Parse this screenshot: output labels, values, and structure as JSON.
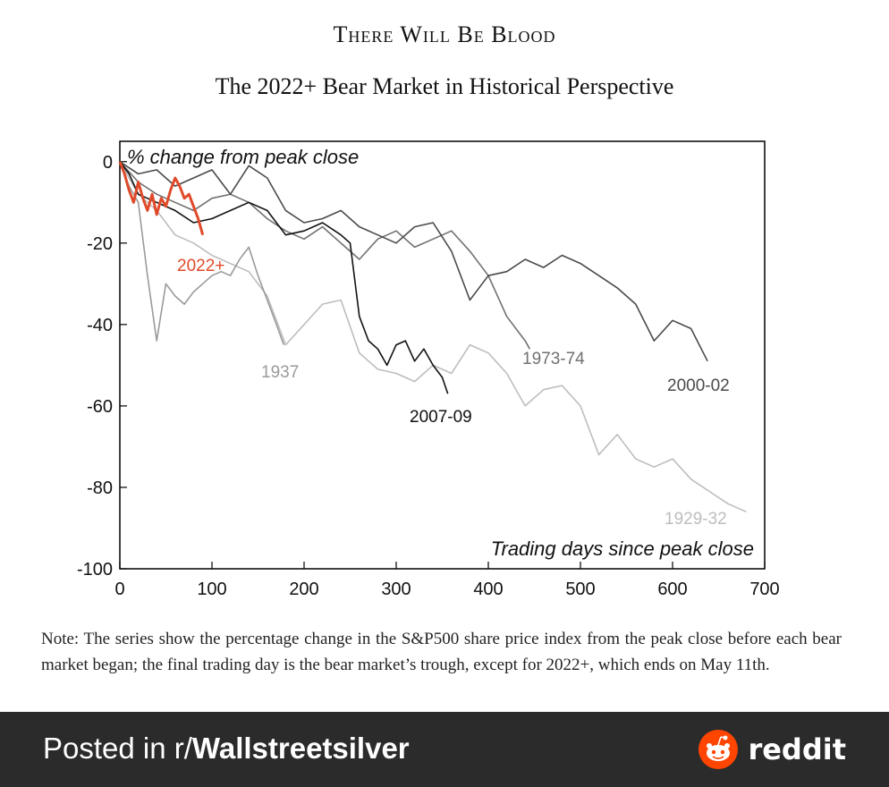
{
  "header": {
    "title": "There Will Be Blood",
    "subtitle": "The 2022+ Bear Market in Historical Perspective"
  },
  "note": "Note: The series show the percentage change in the S&P500 share price index from the peak close before each bear market began; the final trading day is the bear market’s trough, except for 2022+, which ends on May 11th.",
  "footer": {
    "posted_prefix": "Posted in r/",
    "subreddit": "Wallstreetsilver",
    "brand": "reddit",
    "brand_color": "#ff4500"
  },
  "chart_data": {
    "type": "line",
    "ylabel": "% change from peak close",
    "xlabel": "Trading days since peak close",
    "xlim": [
      0,
      700
    ],
    "ylim": [
      -100,
      5
    ],
    "xticks": [
      0,
      100,
      200,
      300,
      400,
      500,
      600,
      700
    ],
    "yticks": [
      0,
      -20,
      -40,
      -60,
      -80,
      -100
    ],
    "grid": false,
    "series": [
      {
        "name": "1929-32",
        "color": "#bdbdbd",
        "x": [
          0,
          10,
          20,
          30,
          40,
          50,
          60,
          80,
          100,
          120,
          140,
          160,
          180,
          200,
          220,
          240,
          260,
          280,
          300,
          320,
          340,
          360,
          380,
          400,
          420,
          440,
          460,
          480,
          500,
          520,
          540,
          560,
          580,
          600,
          620,
          640,
          660,
          680
        ],
        "y": [
          0,
          -4,
          -8,
          -10,
          -12,
          -15,
          -18,
          -20,
          -23,
          -25,
          -27,
          -33,
          -45,
          -40,
          -35,
          -34,
          -47,
          -51,
          -52,
          -54,
          -50,
          -52,
          -45,
          -47,
          -52,
          -60,
          -56,
          -55,
          -60,
          -72,
          -67,
          -73,
          -75,
          -73,
          -78,
          -81,
          -84,
          -86
        ]
      },
      {
        "name": "1937",
        "color": "#9a9a9a",
        "x": [
          0,
          10,
          20,
          30,
          40,
          50,
          60,
          70,
          80,
          90,
          100,
          110,
          120,
          130,
          140,
          150,
          160,
          170,
          178
        ],
        "y": [
          0,
          -6,
          -10,
          -28,
          -44,
          -30,
          -33,
          -35,
          -32,
          -30,
          -28,
          -27,
          -28,
          -24,
          -21,
          -28,
          -34,
          -40,
          -45
        ]
      },
      {
        "name": "1973-74",
        "color": "#707070",
        "x": [
          0,
          20,
          40,
          60,
          80,
          100,
          120,
          140,
          160,
          180,
          200,
          220,
          240,
          260,
          280,
          300,
          320,
          340,
          360,
          380,
          400,
          420,
          440,
          445
        ],
        "y": [
          0,
          -5,
          -8,
          -10,
          -12,
          -9,
          -8,
          -10,
          -14,
          -17,
          -19,
          -16,
          -20,
          -24,
          -19,
          -17,
          -21,
          -19,
          -17,
          -22,
          -28,
          -38,
          -44,
          -46
        ]
      },
      {
        "name": "2000-02",
        "color": "#4a4a4a",
        "x": [
          0,
          20,
          40,
          60,
          80,
          100,
          120,
          140,
          160,
          180,
          200,
          220,
          240,
          260,
          280,
          300,
          320,
          340,
          360,
          380,
          400,
          420,
          440,
          460,
          480,
          500,
          520,
          540,
          560,
          580,
          600,
          620,
          638
        ],
        "y": [
          0,
          -3,
          -2,
          -6,
          -4,
          -2,
          -8,
          -1,
          -4,
          -12,
          -15,
          -14,
          -12,
          -16,
          -18,
          -20,
          -16,
          -15,
          -22,
          -34,
          -28,
          -27,
          -24,
          -26,
          -23,
          -25,
          -28,
          -31,
          -35,
          -44,
          -39,
          -41,
          -49
        ]
      },
      {
        "name": "2007-09",
        "color": "#111111",
        "x": [
          0,
          10,
          20,
          40,
          60,
          80,
          100,
          120,
          140,
          160,
          180,
          200,
          220,
          240,
          250,
          260,
          270,
          280,
          290,
          300,
          310,
          320,
          330,
          340,
          350,
          356
        ],
        "y": [
          0,
          -3,
          -8,
          -10,
          -12,
          -15,
          -14,
          -12,
          -10,
          -12,
          -18,
          -17,
          -15,
          -18,
          -20,
          -38,
          -44,
          -46,
          -50,
          -45,
          -44,
          -49,
          -46,
          -50,
          -53,
          -57
        ]
      },
      {
        "name": "2022+",
        "color": "#e04a2a",
        "x": [
          0,
          5,
          10,
          15,
          20,
          25,
          30,
          35,
          40,
          45,
          50,
          55,
          60,
          65,
          70,
          75,
          80,
          85,
          90
        ],
        "y": [
          0,
          -3,
          -7,
          -10,
          -5,
          -9,
          -12,
          -8,
          -13,
          -9,
          -11,
          -7,
          -4,
          -6,
          -9,
          -8,
          -11,
          -14,
          -18
        ]
      }
    ]
  }
}
